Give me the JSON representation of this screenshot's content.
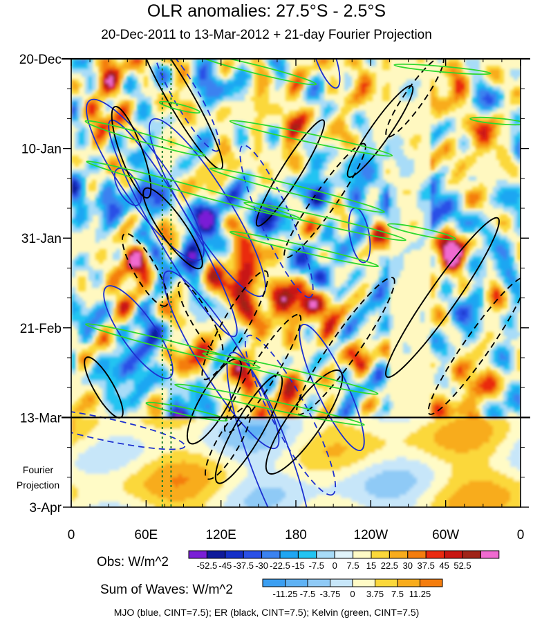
{
  "chart_data": {
    "type": "heatmap",
    "title": "OLR anomalies: 27.5°S - 2.5°S",
    "subtitle": "20-Dec-2011 to 13-Mar-2012 + 21-day Fourier Projection",
    "xlabel": "",
    "ylabel": "",
    "x_ticks": [
      "0",
      "60E",
      "120E",
      "180",
      "120W",
      "60W",
      "0"
    ],
    "x_values_deg_east": [
      0,
      60,
      120,
      180,
      240,
      300,
      360
    ],
    "y_ticks": [
      "20-Dec",
      "10-Jan",
      "31-Jan",
      "21-Feb",
      "13-Mar",
      "3-Apr"
    ],
    "y_values_dates": [
      "2011-12-20",
      "2012-01-10",
      "2012-01-31",
      "2012-02-21",
      "2012-03-13",
      "2012-04-03"
    ],
    "fourier_label": [
      "Fourier",
      "Projection"
    ],
    "observation_end": "13-Mar",
    "obs_colorbar": {
      "label": "Obs: W/m^2",
      "levels": [
        "-52.5",
        "-45",
        "-37.5",
        "-30",
        "-22.5",
        "-15",
        "-7.5",
        "0",
        "7.5",
        "15",
        "22.5",
        "30",
        "37.5",
        "45",
        "52.5"
      ],
      "colors": [
        "#7a1fd6",
        "#0f1a9a",
        "#1530c8",
        "#2a50e6",
        "#3b82f0",
        "#1fa6f2",
        "#22c4f2",
        "#a8dcf8",
        "#e0f4fb",
        "#fffbc6",
        "#fbd83a",
        "#f8ac1c",
        "#f47d0e",
        "#ea2a10",
        "#c81612",
        "#a02418",
        "#f06ad0"
      ]
    },
    "waves_colorbar": {
      "label": "Sum of Waves: W/m^2",
      "levels": [
        "-11.25",
        "-7.5",
        "-3.75",
        "0",
        "3.75",
        "7.5",
        "11.25"
      ],
      "colors": [
        "#3b9ff2",
        "#5fb2f4",
        "#8fcaf6",
        "#c7e6f9",
        "#fffbc6",
        "#fbd83a",
        "#f8ac1c",
        "#f47d0e"
      ]
    },
    "contours": [
      {
        "name": "MJO",
        "color": "blue",
        "cint": 7.5
      },
      {
        "name": "ER",
        "color": "black",
        "cint": 7.5
      },
      {
        "name": "Kelvin",
        "color": "green",
        "cint": 7.5
      }
    ],
    "footer": "MJO (blue, CINT=7.5); ER (black, CINT=7.5); Kelvin (green, CINT=7.5)",
    "dotted_meridians_deg_east": [
      73,
      80
    ],
    "colors": {
      "mjo": "#1c2fd0",
      "er": "#000000",
      "kelvin": "#2ed82e",
      "dotted": "#1a7a2a"
    }
  }
}
